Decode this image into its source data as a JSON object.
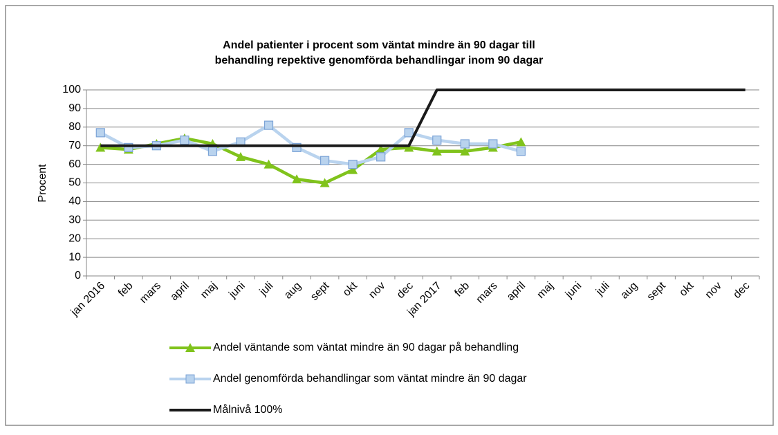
{
  "chart_data": {
    "type": "line",
    "title": [
      "Andel patienter i procent som väntat mindre än 90 dagar till",
      "behandling repektive genomförda behandlingar inom 90 dagar"
    ],
    "y_label": "Procent",
    "categories": [
      "jan 2016",
      "feb",
      "mars",
      "april",
      "maj",
      "juni",
      "juli",
      "aug",
      "sept",
      "okt",
      "nov",
      "dec",
      "jan 2017",
      "feb",
      "mars",
      "april",
      "maj",
      "juni",
      "juli",
      "aug",
      "sept",
      "okt",
      "nov",
      "dec"
    ],
    "series": [
      {
        "name": "Andel väntande som väntat mindre än 90 dagar på behandling",
        "color": "#80c31c",
        "marker": "triangle",
        "values": [
          69,
          68,
          71,
          74,
          71,
          64,
          60,
          52,
          50,
          57,
          68,
          69,
          67,
          67,
          69,
          72,
          null,
          null,
          null,
          null,
          null,
          null,
          null,
          null
        ]
      },
      {
        "name": "Andel genomförda behandlingar som väntat mindre än 90 dagar",
        "color": "#b9d3ee",
        "marker": "square",
        "values": [
          77,
          69,
          70,
          73,
          67,
          72,
          81,
          69,
          62,
          60,
          64,
          77,
          73,
          71,
          71,
          67,
          null,
          null,
          null,
          null,
          null,
          null,
          null,
          null
        ]
      },
      {
        "name": "Målnivå 100%",
        "color": "#1a1a1a",
        "marker": "none",
        "values": [
          70,
          70,
          70,
          70,
          70,
          70,
          70,
          70,
          70,
          70,
          70,
          70,
          100,
          100,
          100,
          100,
          100,
          100,
          100,
          100,
          100,
          100,
          100,
          100
        ]
      }
    ],
    "ylim": [
      0,
      100
    ],
    "yticks": [
      0,
      10,
      20,
      30,
      40,
      50,
      60,
      70,
      80,
      90,
      100
    ],
    "grid": true,
    "legend": "bottom"
  }
}
